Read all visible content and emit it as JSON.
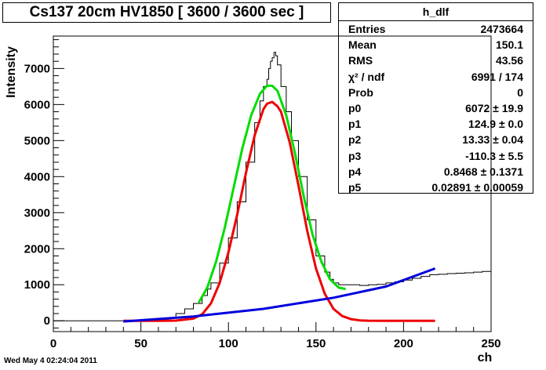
{
  "title": "Cs137 20cm HV1850 [ 3600 / 3600 sec ]",
  "footer": "Wed May  4 02:24:04 2011",
  "stats": {
    "name": "h_dlf",
    "rows": [
      {
        "key": "Entries",
        "value": "2473664"
      },
      {
        "key": "Mean",
        "value": "150.1"
      },
      {
        "key": "RMS",
        "value": "43.56"
      },
      {
        "key": "χ² / ndf",
        "value": "6991 / 174"
      },
      {
        "key": "Prob",
        "value": "0"
      },
      {
        "key": "p0",
        "value": "6072 ± 19.9"
      },
      {
        "key": "p1",
        "value": "124.9 ± 0.0"
      },
      {
        "key": "p2",
        "value": "13.33 ± 0.04"
      },
      {
        "key": "p3",
        "value": "-110.3 ± 5.5"
      },
      {
        "key": "p4",
        "value": "0.8468 ± 0.1371"
      },
      {
        "key": "p5",
        "value": "0.02891 ± 0.00059"
      }
    ]
  },
  "chart_data": {
    "type": "line",
    "xlabel": "ch",
    "ylabel": "Intensity",
    "xlim": [
      0,
      250
    ],
    "ylim": [
      -300,
      7900
    ],
    "xticks": [
      0,
      50,
      100,
      150,
      200,
      250
    ],
    "yticks": [
      0,
      1000,
      2000,
      3000,
      4000,
      5000,
      6000,
      7000
    ],
    "histogram": {
      "color": "#000000",
      "points": [
        [
          0,
          0
        ],
        [
          40,
          0
        ],
        [
          50,
          5
        ],
        [
          60,
          40
        ],
        [
          65,
          80
        ],
        [
          70,
          200
        ],
        [
          75,
          330
        ],
        [
          80,
          480
        ],
        [
          85,
          700
        ],
        [
          88,
          880
        ],
        [
          90,
          1050
        ],
        [
          95,
          1600
        ],
        [
          100,
          2300
        ],
        [
          105,
          3300
        ],
        [
          110,
          4400
        ],
        [
          115,
          5500
        ],
        [
          118,
          6100
        ],
        [
          120,
          6500
        ],
        [
          122,
          6700
        ],
        [
          123,
          7000
        ],
        [
          124,
          7200
        ],
        [
          125,
          7300
        ],
        [
          126,
          7450
        ],
        [
          127,
          7350
        ],
        [
          128,
          7100
        ],
        [
          130,
          6500
        ],
        [
          133,
          5800
        ],
        [
          136,
          5000
        ],
        [
          140,
          4000
        ],
        [
          145,
          2800
        ],
        [
          150,
          1800
        ],
        [
          155,
          1350
        ],
        [
          158,
          1150
        ],
        [
          160,
          1050
        ],
        [
          163,
          1000
        ],
        [
          165,
          1000
        ],
        [
          170,
          1000
        ],
        [
          175,
          980
        ],
        [
          180,
          1000
        ],
        [
          185,
          1010
        ],
        [
          190,
          1050
        ],
        [
          195,
          1080
        ],
        [
          200,
          1130
        ],
        [
          205,
          1180
        ],
        [
          210,
          1230
        ],
        [
          215,
          1280
        ],
        [
          220,
          1290
        ],
        [
          225,
          1310
        ],
        [
          230,
          1320
        ],
        [
          235,
          1330
        ],
        [
          240,
          1350
        ],
        [
          245,
          1370
        ],
        [
          250,
          1380
        ]
      ]
    },
    "series": [
      {
        "name": "",
        "color": "#00dd00",
        "points": [
          [
            83,
            500
          ],
          [
            88,
            930
          ],
          [
            93,
            1650
          ],
          [
            98,
            2600
          ],
          [
            103,
            3700
          ],
          [
            108,
            4800
          ],
          [
            113,
            5700
          ],
          [
            118,
            6300
          ],
          [
            122,
            6520
          ],
          [
            125,
            6520
          ],
          [
            128,
            6380
          ],
          [
            133,
            5700
          ],
          [
            138,
            4650
          ],
          [
            143,
            3450
          ],
          [
            148,
            2400
          ],
          [
            153,
            1650
          ],
          [
            158,
            1150
          ],
          [
            163,
            920
          ],
          [
            167,
            880
          ]
        ]
      },
      {
        "name": "",
        "color": "#ee0000",
        "points": [
          [
            40,
            0
          ],
          [
            60,
            0
          ],
          [
            70,
            5
          ],
          [
            80,
            60
          ],
          [
            85,
            180
          ],
          [
            90,
            480
          ],
          [
            95,
            1050
          ],
          [
            100,
            1900
          ],
          [
            105,
            2950
          ],
          [
            110,
            4100
          ],
          [
            115,
            5150
          ],
          [
            120,
            5870
          ],
          [
            122,
            6020
          ],
          [
            125,
            6072
          ],
          [
            128,
            5950
          ],
          [
            130,
            5800
          ],
          [
            135,
            4950
          ],
          [
            140,
            3750
          ],
          [
            145,
            2500
          ],
          [
            150,
            1450
          ],
          [
            155,
            750
          ],
          [
            160,
            330
          ],
          [
            165,
            130
          ],
          [
            170,
            45
          ],
          [
            175,
            12
          ],
          [
            180,
            3
          ],
          [
            190,
            0
          ],
          [
            218,
            0
          ]
        ]
      },
      {
        "name": "",
        "color": "#0000dd",
        "points": [
          [
            40,
            -20
          ],
          [
            80,
            120
          ],
          [
            120,
            330
          ],
          [
            160,
            640
          ],
          [
            190,
            950
          ],
          [
            218,
            1450
          ]
        ]
      }
    ]
  }
}
